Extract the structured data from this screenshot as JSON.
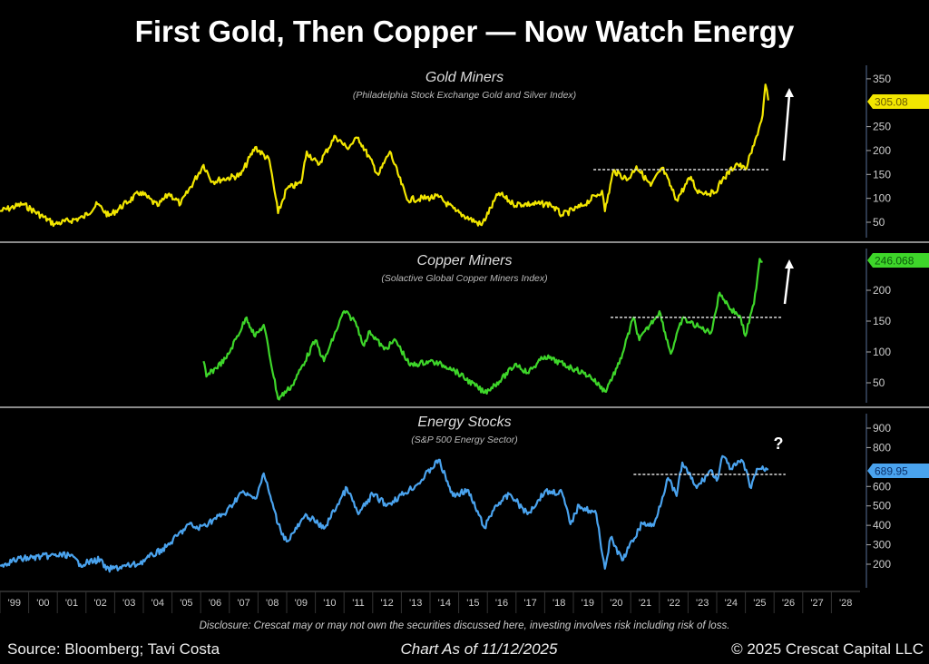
{
  "title": "First Gold, Then Copper — Now Watch Energy",
  "footer": {
    "disclosure": "Disclosure: Crescat may or may not own the securities discussed here, investing involves risk including risk of loss.",
    "source": "Source: Bloomberg; Tavi Costa",
    "as_of": "Chart As of 11/12/2025",
    "copyright": "© 2025 Crescat Capital LLC"
  },
  "chart_data": [
    {
      "type": "line",
      "title": "Gold Miners",
      "subtitle": "(Philadelphia Stock Exchange Gold and Silver Index)",
      "color": "#f2e600",
      "last_value_label": "305.08",
      "yticks": [
        "50",
        "100",
        "150",
        "200",
        "250",
        "350"
      ],
      "ylim": [
        50,
        350
      ],
      "resistance": {
        "value": 160,
        "from": 2019.7,
        "to": 2025.8
      },
      "annotation": "up-arrow",
      "x": [
        1999.0,
        1999.8,
        2000.9,
        2001.9,
        2002.4,
        2002.8,
        2003.9,
        2004.5,
        2004.9,
        2005.3,
        2006.1,
        2006.4,
        2007.4,
        2007.9,
        2008.4,
        2008.7,
        2009.0,
        2009.5,
        2009.7,
        2010.1,
        2010.7,
        2011.1,
        2011.5,
        2012.2,
        2012.6,
        2013.2,
        2014.3,
        2014.9,
        2015.8,
        2016.4,
        2016.9,
        2018.2,
        2018.6,
        2019.3,
        2020.0,
        2020.1,
        2020.4,
        2020.9,
        2021.2,
        2021.7,
        2022.1,
        2022.6,
        2023.1,
        2023.3,
        2023.9,
        2024.2,
        2024.7,
        2025.0,
        2025.3,
        2025.6,
        2025.7,
        2025.8
      ],
      "y": [
        73,
        88,
        46,
        60,
        88,
        63,
        113,
        84,
        110,
        88,
        170,
        135,
        149,
        207,
        179,
        69,
        120,
        132,
        198,
        170,
        230,
        205,
        227,
        149,
        198,
        97,
        103,
        73,
        44,
        111,
        88,
        88,
        65,
        84,
        116,
        73,
        158,
        139,
        167,
        126,
        164,
        97,
        145,
        116,
        110,
        139,
        173,
        160,
        211,
        274,
        338,
        305
      ]
    },
    {
      "type": "line",
      "title": "Copper Miners",
      "subtitle": "(Solactive Global Copper Miners Index)",
      "color": "#3ed62a",
      "last_value_label": "246.068",
      "yticks": [
        "50",
        "100",
        "150",
        "200"
      ],
      "ylim": [
        50,
        250
      ],
      "resistance": {
        "value": 156,
        "from": 2020.3,
        "to": 2026.3
      },
      "annotation": "up-arrow",
      "x": [
        2006.1,
        2006.2,
        2006.9,
        2007.6,
        2007.9,
        2008.2,
        2008.7,
        2009.2,
        2010.0,
        2010.3,
        2011.0,
        2011.4,
        2011.7,
        2011.9,
        2012.4,
        2012.8,
        2013.3,
        2014.0,
        2014.7,
        2015.9,
        2016.5,
        2017.0,
        2017.4,
        2018.0,
        2019.1,
        2019.6,
        2020.1,
        2020.6,
        2021.1,
        2021.3,
        2022.0,
        2022.4,
        2022.8,
        2023.4,
        2023.8,
        2024.1,
        2024.5,
        2024.8,
        2025.0,
        2025.3,
        2025.5,
        2025.6
      ],
      "y": [
        85,
        60,
        90,
        156,
        125,
        144,
        24,
        46,
        119,
        85,
        166,
        149,
        110,
        134,
        104,
        119,
        78,
        85,
        75,
        34,
        56,
        81,
        66,
        93,
        71,
        60,
        36,
        81,
        156,
        119,
        166,
        97,
        154,
        140,
        131,
        196,
        169,
        159,
        126,
        178,
        251,
        246
      ]
    },
    {
      "type": "line",
      "title": "Energy Stocks",
      "subtitle": "(S&P 500 Energy Sector)",
      "color": "#4aa3ee",
      "last_value_label": "689.95",
      "yticks": [
        "200",
        "300",
        "400",
        "500",
        "600",
        "800",
        "900"
      ],
      "ylim": [
        200,
        900
      ],
      "resistance": {
        "value": 662,
        "from": 2021.1,
        "to": 2026.4
      },
      "annotation": "?",
      "x": [
        1999.0,
        1999.6,
        2000.7,
        2001.4,
        2001.8,
        2002.5,
        2002.7,
        2003.8,
        2004.8,
        2005.6,
        2005.9,
        2006.9,
        2007.4,
        2007.9,
        2008.2,
        2008.7,
        2009.0,
        2009.7,
        2010.3,
        2011.1,
        2011.5,
        2012.0,
        2012.5,
        2013.6,
        2014.3,
        2014.8,
        2015.3,
        2015.9,
        2016.3,
        2016.8,
        2017.4,
        2018.0,
        2018.6,
        2018.9,
        2019.2,
        2019.8,
        2020.1,
        2020.3,
        2020.7,
        2021.4,
        2021.8,
        2022.3,
        2022.6,
        2022.8,
        2023.3,
        2023.8,
        2024.0,
        2024.2,
        2024.5,
        2024.9,
        2025.2,
        2025.4,
        2025.8
      ],
      "y": [
        195,
        225,
        243,
        248,
        200,
        225,
        172,
        200,
        289,
        406,
        383,
        467,
        569,
        537,
        667,
        406,
        317,
        453,
        383,
        592,
        457,
        560,
        504,
        616,
        737,
        551,
        583,
        387,
        504,
        560,
        457,
        574,
        569,
        406,
        504,
        457,
        177,
        336,
        220,
        411,
        397,
        644,
        551,
        723,
        592,
        685,
        630,
        756,
        691,
        732,
        592,
        691,
        690
      ]
    }
  ],
  "x_axis": {
    "tick_labels": [
      "'99",
      "'00",
      "'01",
      "'02",
      "'03",
      "'04",
      "'05",
      "'06",
      "'07",
      "'08",
      "'09",
      "'10",
      "'11",
      "'12",
      "'13",
      "'14",
      "'15",
      "'16",
      "'17",
      "'18",
      "'19",
      "'20",
      "'21",
      "'22",
      "'23",
      "'24",
      "'25",
      "'26",
      "'27",
      "'28"
    ],
    "range": [
      1999,
      2029
    ]
  }
}
